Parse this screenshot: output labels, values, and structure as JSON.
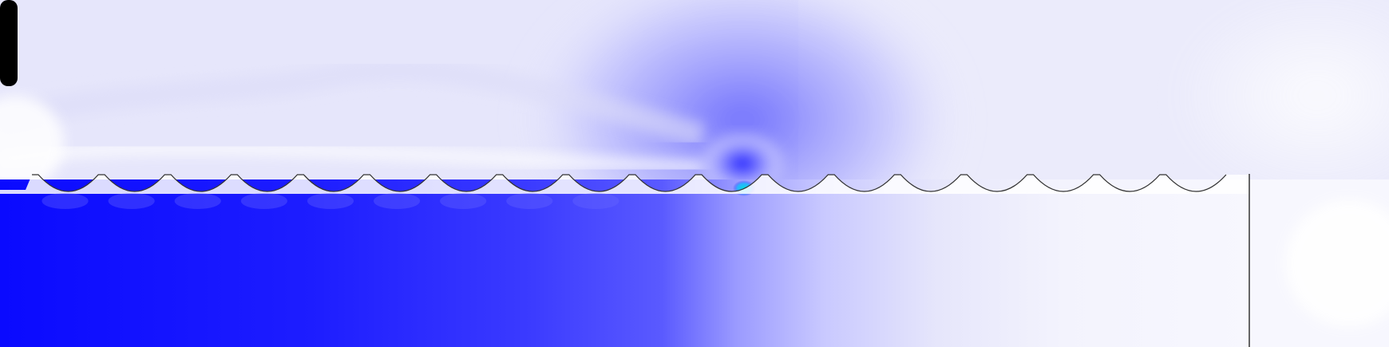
{
  "scene": {
    "kind": "cfd-contour-field",
    "colormap": [
      "#0a0aff",
      "#2e2eff",
      "#5a5aff",
      "#9b9bff",
      "#c9c9ff",
      "#e6e6fb",
      "#f6f6fd",
      "#ffffff"
    ],
    "accent_colors": {
      "hotspot": "#00d8d8",
      "wall_outline": "#333333",
      "wall_fill": "#ffffff",
      "block": "#000000"
    },
    "ridge_count": 18
  }
}
